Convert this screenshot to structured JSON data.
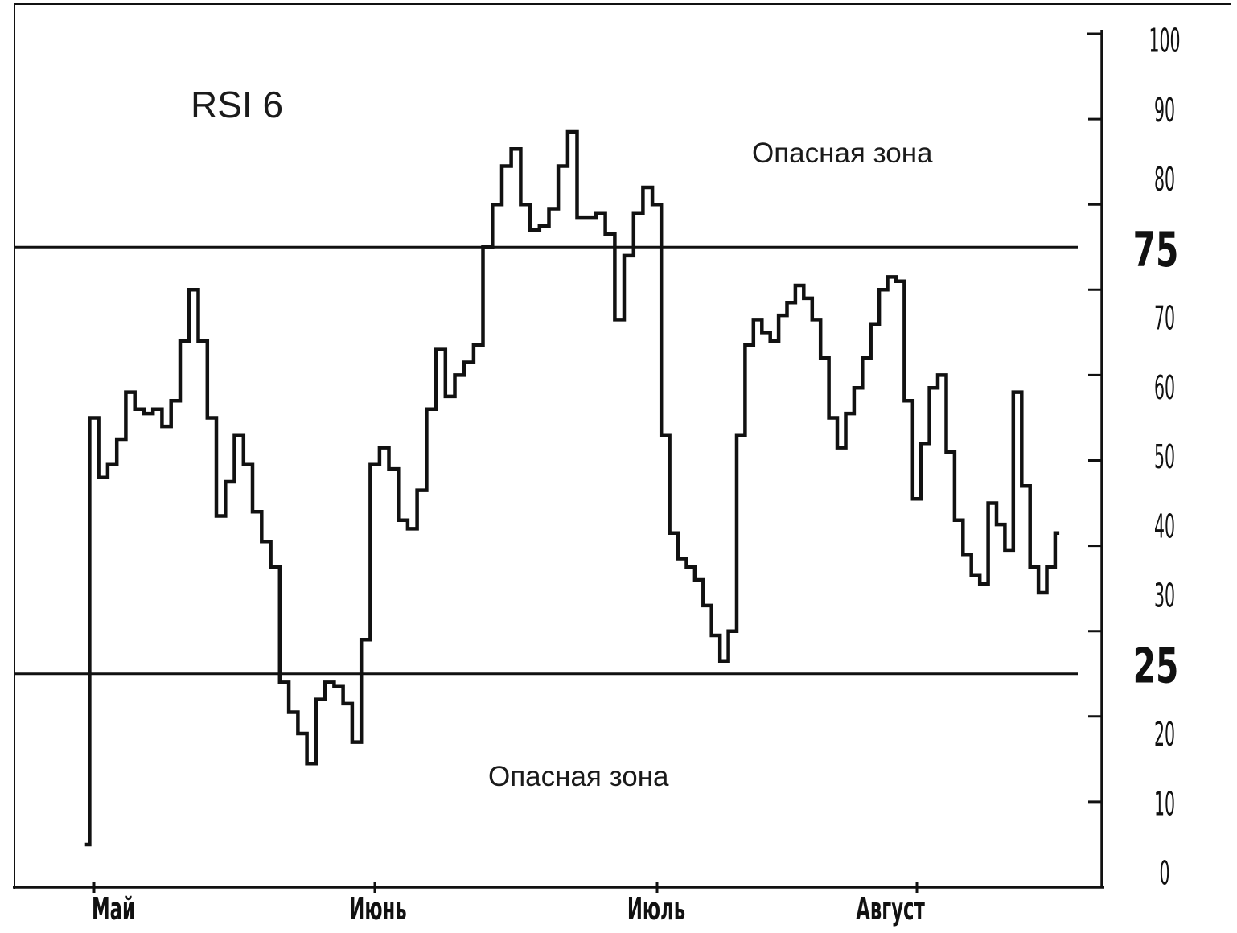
{
  "chart_data": {
    "type": "line",
    "title": "RSI 6",
    "x_ticks": [
      "Май",
      "Июнь",
      "Июль",
      "Август"
    ],
    "y_ticks": [
      0,
      10,
      20,
      30,
      40,
      50,
      60,
      70,
      80,
      90,
      100
    ],
    "ylim": [
      0,
      100
    ],
    "grid": false,
    "reference_lines": [
      {
        "value": 75,
        "label": "75"
      },
      {
        "value": 25,
        "label": "25"
      }
    ],
    "annotations": [
      "Опасная зона",
      "Опасная зона"
    ],
    "series": [
      {
        "x": [
          "04-30",
          "05-01",
          "05-02",
          "05-03",
          "05-04",
          "05-05",
          "05-06",
          "05-07",
          "05-08",
          "05-09",
          "05-10",
          "05-11",
          "05-12",
          "05-13",
          "05-14",
          "05-15",
          "05-16",
          "05-17",
          "05-18",
          "05-19",
          "05-20",
          "05-21",
          "05-22",
          "05-23",
          "05-24",
          "05-25",
          "05-26",
          "05-27",
          "05-28",
          "05-29",
          "05-30",
          "05-31",
          "06-01",
          "06-02",
          "06-03",
          "06-04",
          "06-05",
          "06-06",
          "06-07",
          "06-08",
          "06-09",
          "06-10",
          "06-11",
          "06-12",
          "06-13",
          "06-14",
          "06-15",
          "06-16",
          "06-17",
          "06-18",
          "06-19",
          "06-20",
          "06-21",
          "06-22",
          "06-23",
          "06-24",
          "06-25",
          "06-26",
          "06-27",
          "06-28",
          "06-29",
          "06-30",
          "07-01",
          "07-02",
          "07-03",
          "07-04",
          "07-05",
          "07-06",
          "07-07",
          "07-08",
          "07-09",
          "07-10",
          "07-11",
          "07-12",
          "07-13",
          "07-14",
          "07-15",
          "07-16",
          "07-17",
          "07-18",
          "07-19",
          "07-20",
          "07-21",
          "07-22",
          "07-23",
          "07-24",
          "07-25",
          "07-26",
          "07-27",
          "07-28",
          "07-29",
          "07-30",
          "07-31",
          "08-01",
          "08-02",
          "08-03",
          "08-04",
          "08-05",
          "08-06",
          "08-07",
          "08-08",
          "08-09",
          "08-10",
          "08-11",
          "08-12",
          "08-13",
          "08-14",
          "08-15",
          "08-16",
          "08-17",
          "08-18"
        ],
        "values": [
          5,
          55,
          48,
          49.5,
          52.5,
          58,
          56,
          55.5,
          56,
          54,
          57,
          64,
          70,
          64,
          55,
          43.5,
          47.5,
          53,
          49.5,
          44,
          40.5,
          37.5,
          24,
          20.5,
          18,
          14.5,
          22,
          24,
          23.5,
          21.5,
          17,
          29,
          49.5,
          51.5,
          49,
          43,
          42,
          46.5,
          56,
          63,
          57.5,
          60,
          61.5,
          63.5,
          75,
          80,
          84.5,
          86.5,
          80,
          77,
          77.5,
          79.5,
          84.5,
          88.5,
          78.5,
          78.5,
          79,
          76.5,
          66.5,
          74,
          79,
          82,
          80,
          53,
          41.5,
          38.5,
          37.5,
          36,
          33,
          29.5,
          26.5,
          30,
          53,
          63.5,
          66.5,
          65,
          64,
          67,
          68.5,
          70.5,
          69,
          66.5,
          62,
          55,
          51.5,
          55.5,
          58.5,
          62,
          66,
          70,
          71.5,
          71,
          57,
          45.5,
          52,
          58.5,
          60,
          51,
          43,
          39,
          36.5,
          35.5,
          45,
          42.5,
          39.5,
          58,
          47,
          37.5,
          34.5,
          37.5,
          41.5
        ]
      }
    ]
  }
}
